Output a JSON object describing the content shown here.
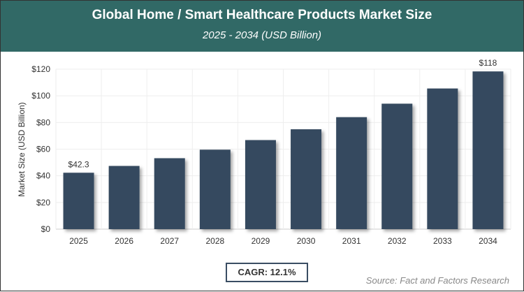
{
  "header": {
    "title": "Global Home / Smart Healthcare Products Market Size",
    "subtitle": "2025 - 2034 (USD Billion)"
  },
  "chart_data": {
    "type": "bar",
    "categories": [
      "2025",
      "2026",
      "2027",
      "2028",
      "2029",
      "2030",
      "2031",
      "2032",
      "2033",
      "2034"
    ],
    "values": [
      42.3,
      47.4,
      53.2,
      59.6,
      66.8,
      74.9,
      84.0,
      94.1,
      105.5,
      118.3
    ],
    "data_labels": {
      "0": "$42.3",
      "9": "$118"
    },
    "xlabel": "",
    "ylabel": "Market Size (USD Billion)",
    "ylim": [
      0,
      120
    ],
    "yticks": [
      "$0",
      "$20",
      "$40",
      "$60",
      "$80",
      "$100",
      "$120"
    ],
    "grid": true,
    "bar_color": "#34495e"
  },
  "footer": {
    "cagr": "CAGR: 12.1%",
    "source": "Source: Fact and Factors Research"
  }
}
